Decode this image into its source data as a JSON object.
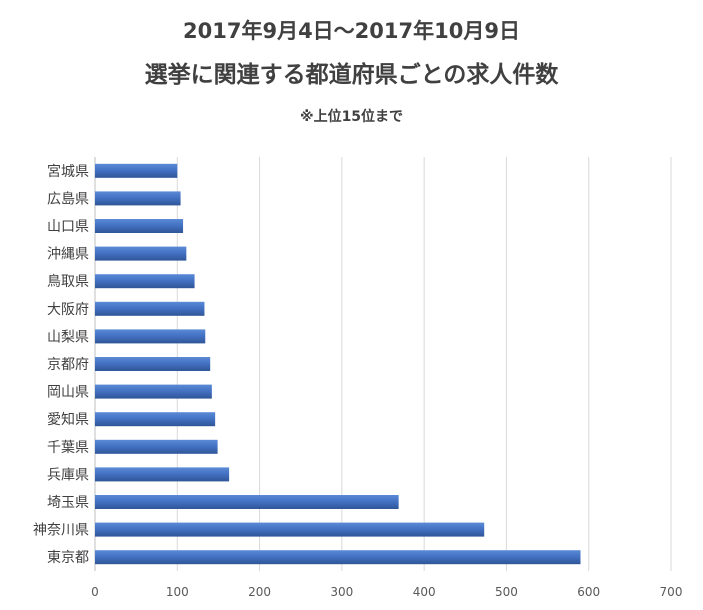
{
  "chart_data": {
    "type": "bar",
    "orientation": "horizontal",
    "title": "2017年9月4日～2017年10月9日",
    "subtitle_main": "選挙に関連する都道府県ごとの求人件数",
    "note": "※上位15位まで",
    "categories": [
      "宮城県",
      "広島県",
      "山口県",
      "沖縄県",
      "鳥取県",
      "大阪府",
      "山梨県",
      "京都府",
      "岡山県",
      "愛知県",
      "千葉県",
      "兵庫県",
      "埼玉県",
      "神奈川県",
      "東京都"
    ],
    "values": [
      100,
      104,
      107,
      111,
      121,
      133,
      134,
      140,
      142,
      146,
      149,
      163,
      369,
      473,
      590
    ],
    "xlim": [
      0,
      700
    ],
    "xticks": [
      0,
      100,
      200,
      300,
      400,
      500,
      600,
      700
    ],
    "grid": true,
    "legend": "none",
    "bar_color": "#4472C4"
  }
}
